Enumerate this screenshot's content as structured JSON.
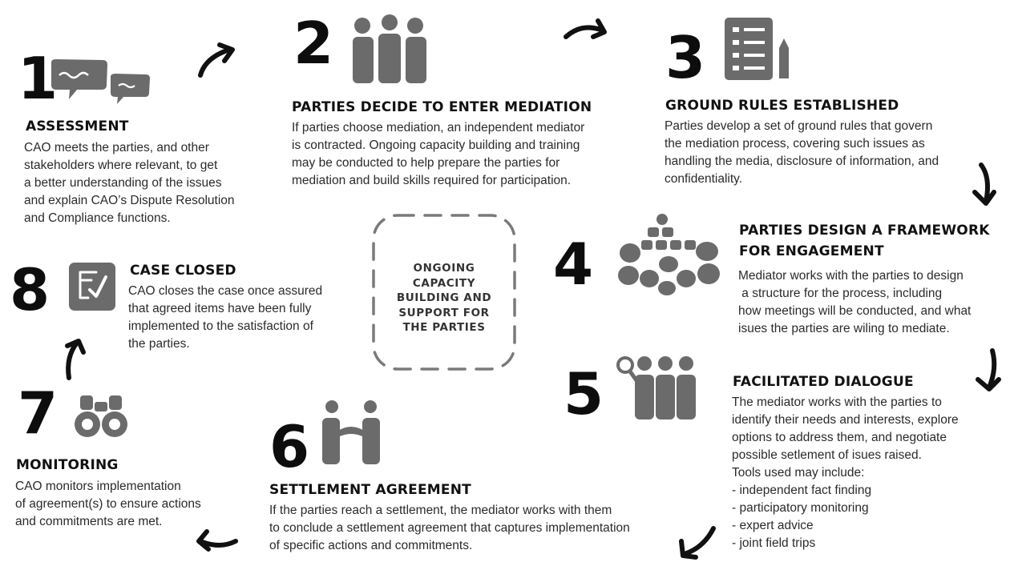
{
  "center": {
    "lines": [
      "ONGOING",
      "CAPACITY",
      "BUILDING AND",
      "SUPPORT FOR",
      "THE PARTIES"
    ]
  },
  "steps": [
    {
      "number": "1",
      "title": "ASSESSMENT",
      "lines": [
        "CAO meets the parties, and other",
        "stakeholders where relevant, to get",
        "a better understanding of the issues",
        "and explain CAO’s Dispute Resolution",
        "and Compliance functions."
      ],
      "icon": "speech-bubbles-icon"
    },
    {
      "number": "2",
      "title": "PARTIES DECIDE TO ENTER MEDIATION",
      "lines": [
        "If parties choose mediation, an independent mediator",
        "is contracted.  Ongoing capacity building and training",
        "may be conducted to help prepare the parties for",
        "mediation and build skills required for participation."
      ],
      "icon": "people-group-icon"
    },
    {
      "number": "3",
      "title": "GROUND RULES ESTABLISHED",
      "lines": [
        "Parties develop a set of ground rules that govern",
        "the mediation process, covering such issues as",
        "handling the media, disclosure of information, and",
        "confidentiality."
      ],
      "icon": "checklist-pencil-icon"
    },
    {
      "number": "4",
      "title_lines": [
        "PARTIES DESIGN A FRAMEWORK",
        "FOR ENGAGEMENT"
      ],
      "lines": [
        "Mediator works with the parties to design",
        " a structure for the process, including",
        "how meetings will be conducted, and what",
        "isues the parties are wiling to mediate."
      ],
      "icon": "meeting-table-icon"
    },
    {
      "number": "5",
      "title": "FACILITATED DIALOGUE",
      "lines": [
        "The mediator works with the parties to",
        "identify their needs and interests, explore",
        "options to address them, and negotiate",
        "possible setlement of isues raised.",
        "Tools used may include:",
        "- independent fact finding",
        "- participatory monitoring",
        "- expert advice",
        "- joint field trips"
      ],
      "icon": "group-magnifier-icon"
    },
    {
      "number": "6",
      "title": "SETTLEMENT AGREEMENT",
      "lines": [
        "If the parties reach a settlement, the mediator works with them",
        "to conclude a settlement agreement that captures implementation",
        "of specific actions and commitments."
      ],
      "icon": "handshake-icon"
    },
    {
      "number": "7",
      "title": "MONITORING",
      "lines": [
        "CAO monitors implementation",
        "of agreement(s) to ensure actions",
        "and commitments are met."
      ],
      "icon": "binoculars-icon"
    },
    {
      "number": "8",
      "title": "CASE CLOSED",
      "lines": [
        "CAO closes the case once assured",
        "that agreed items have been fully",
        "implemented to the satisfaction of",
        "the parties."
      ],
      "icon": "checked-document-icon"
    }
  ],
  "colors": {
    "icon_gray": "#6b6b6b",
    "number": "#0d0d0d",
    "text": "#2b2b2b"
  }
}
